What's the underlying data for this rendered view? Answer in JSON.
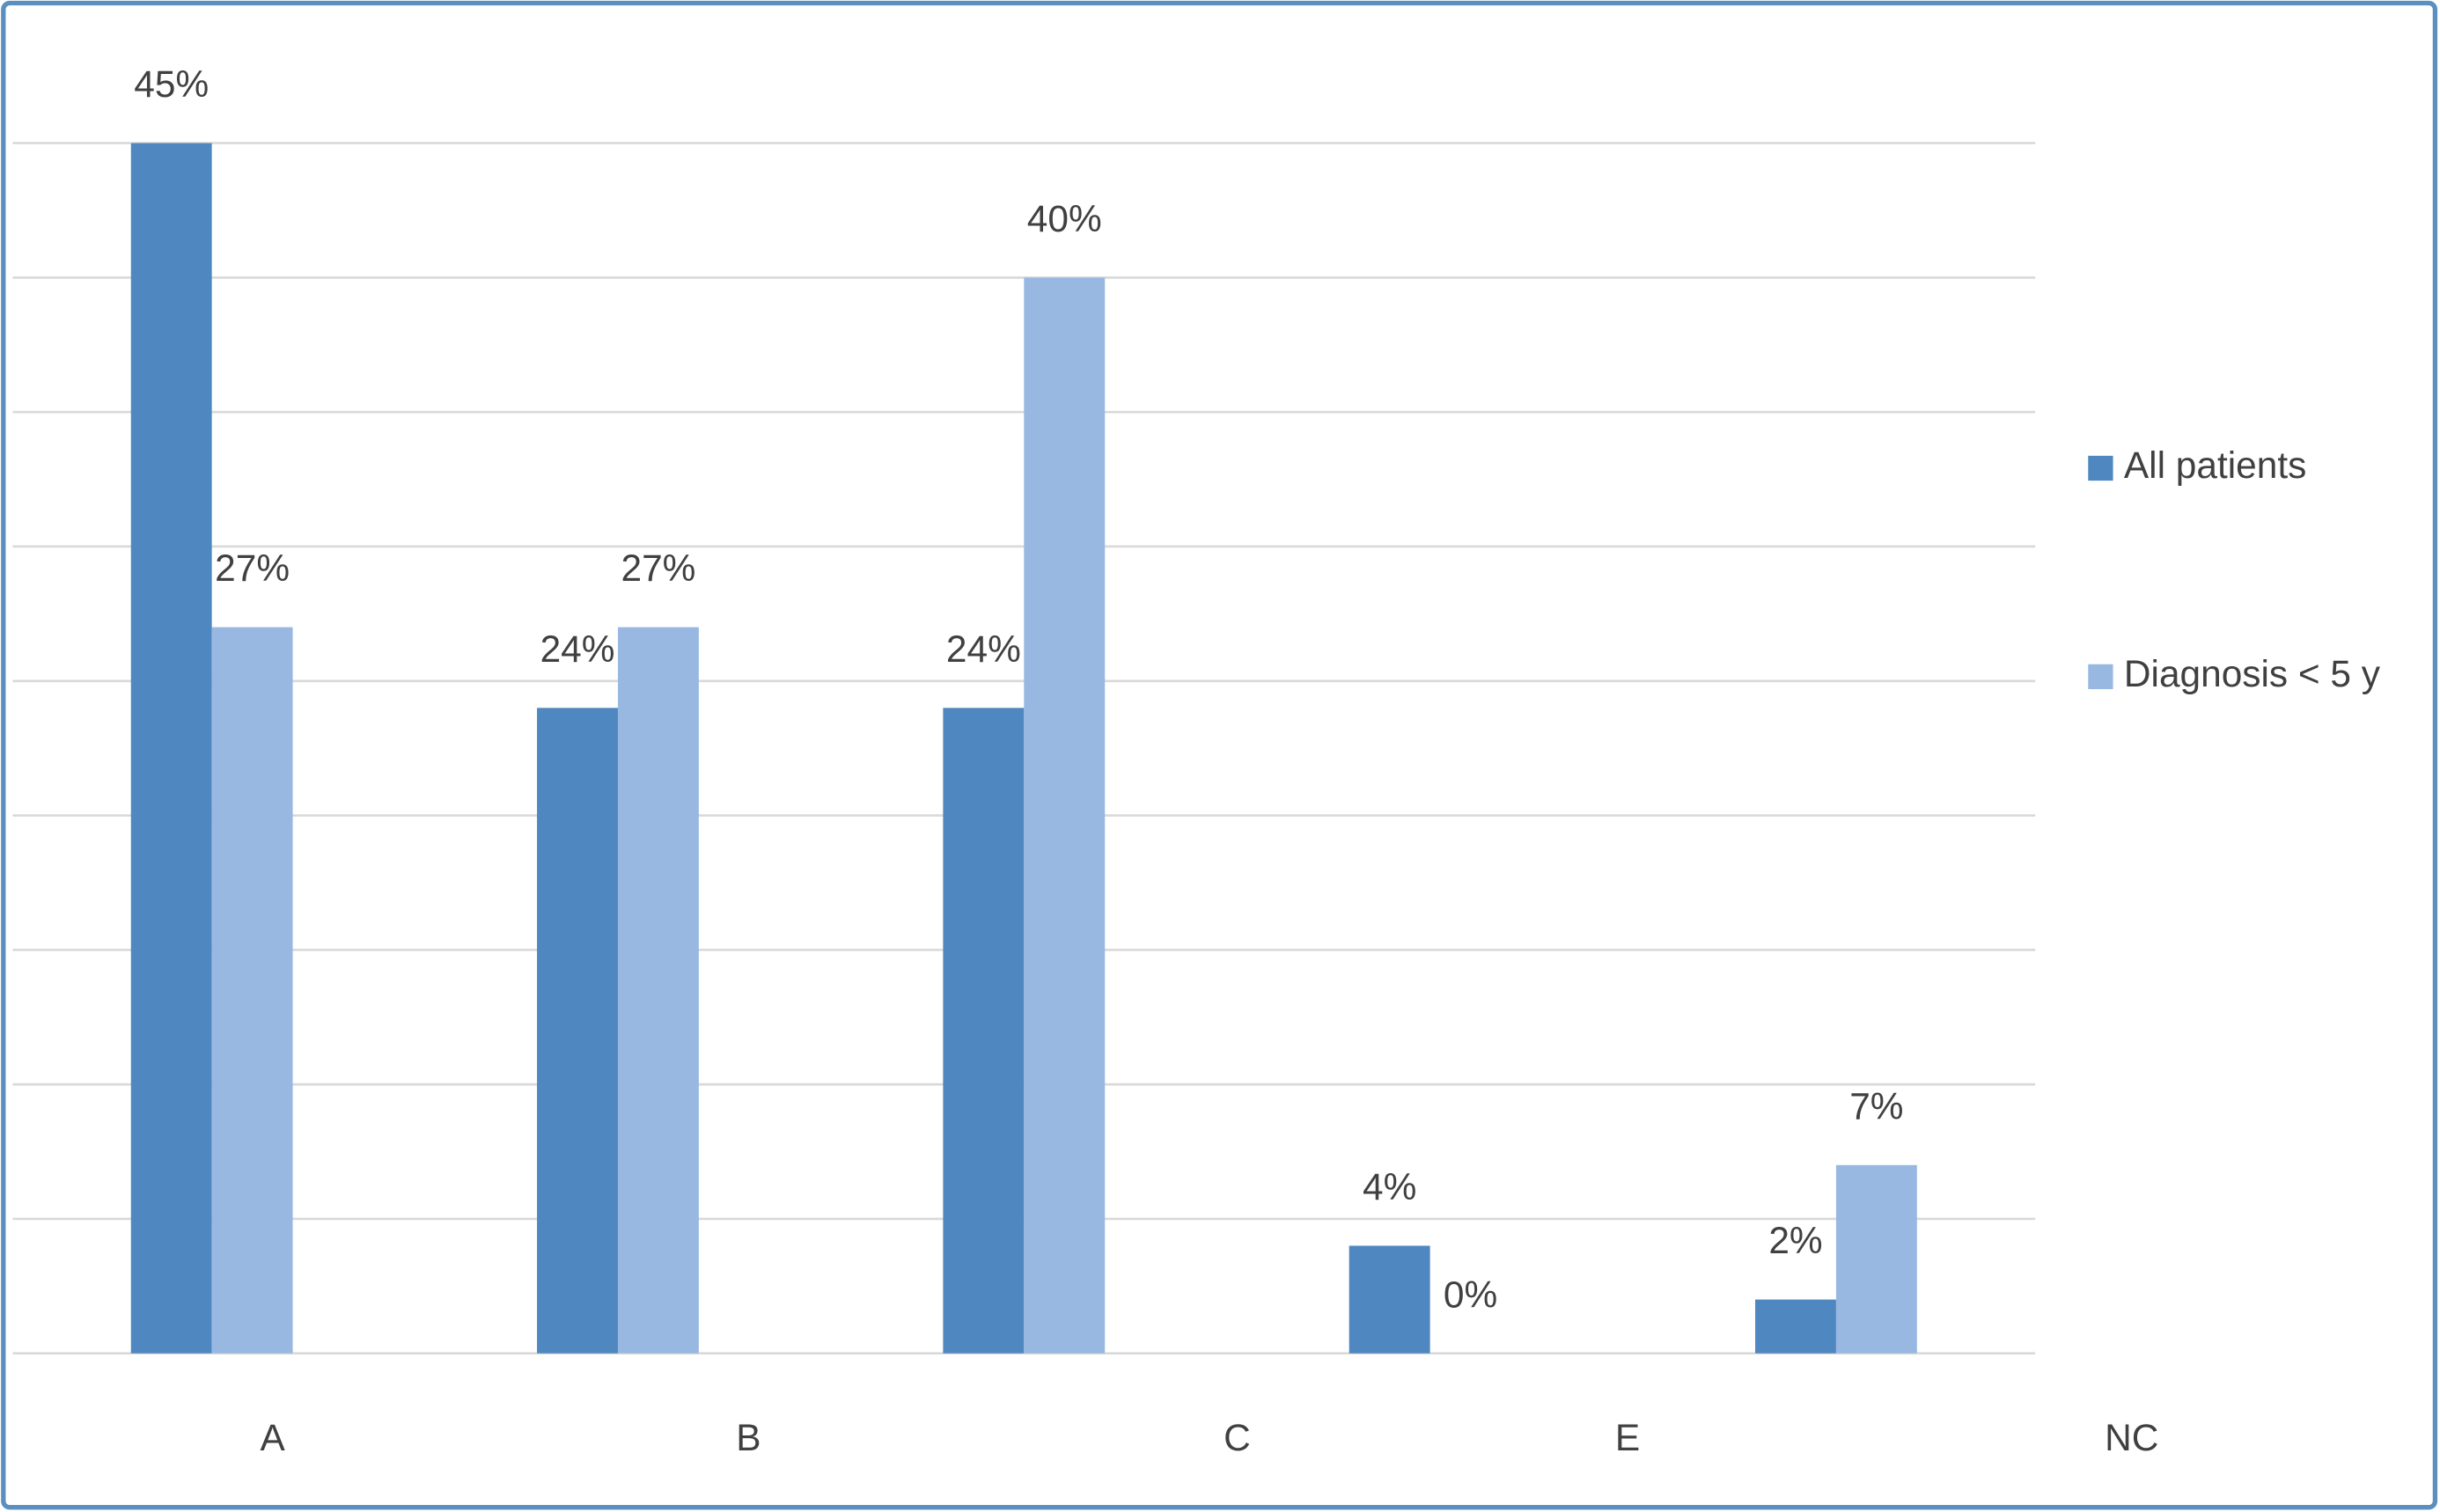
{
  "chart_data": {
    "type": "bar",
    "categories": [
      "A",
      "B",
      "C",
      "E",
      "NC"
    ],
    "series": [
      {
        "name": "All patients",
        "color": "#4f88c0",
        "values": [
          45,
          24,
          24,
          4,
          2
        ],
        "value_labels": [
          "45%",
          "24%",
          "24%",
          "4%",
          "2%"
        ]
      },
      {
        "name": "Diagnosis < 5 y",
        "color": "#98b8e2",
        "values": [
          27,
          27,
          40,
          0,
          7
        ],
        "value_labels": [
          "27%",
          "27%",
          "40%",
          "0%",
          "7%"
        ]
      }
    ],
    "ylim": [
      0,
      45
    ],
    "yticks": [
      0,
      5,
      10,
      15,
      20,
      25,
      30,
      35,
      40,
      45
    ],
    "grid": true,
    "legend": "right"
  }
}
